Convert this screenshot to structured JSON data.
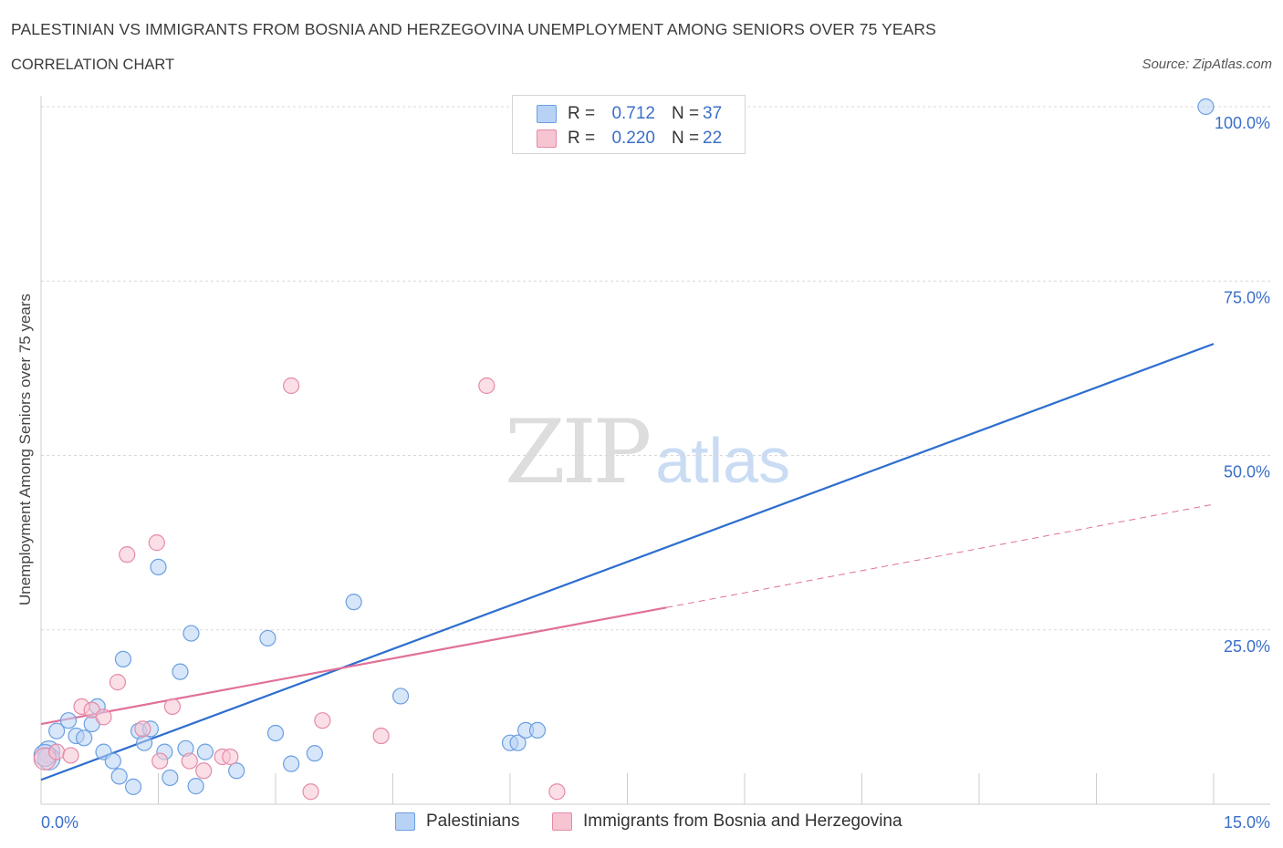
{
  "title": "PALESTINIAN VS IMMIGRANTS FROM BOSNIA AND HERZEGOVINA UNEMPLOYMENT AMONG SENIORS OVER 75 YEARS",
  "subtitle": "CORRELATION CHART",
  "source": "Source: ZipAtlas.com",
  "watermark": {
    "zip": "ZIP",
    "atlas": "atlas"
  },
  "legend": {
    "rows": [
      {
        "r_label": "R =",
        "r_value": "0.712",
        "n_label": "N =",
        "n_value": "37"
      },
      {
        "r_label": "R =",
        "r_value": "0.220",
        "n_label": "N =",
        "n_value": "22"
      }
    ]
  },
  "colors": {
    "blue_fill": "#b8d2f6",
    "blue_stroke": "#6a9fe0",
    "blue_line": "#2d6ecf",
    "pink_fill": "#f7c4d2",
    "pink_stroke": "#e58aa7",
    "pink_line": "#e0709a",
    "grid": "#d8d8d8",
    "tick_text": "#3a6fc9"
  },
  "chart_data": {
    "type": "scatter",
    "title": "PALESTINIAN VS IMMIGRANTS FROM BOSNIA AND HERZEGOVINA UNEMPLOYMENT AMONG SENIORS OVER 75 YEARS",
    "xlabel": "",
    "ylabel": "Unemployment Among Seniors over 75 years",
    "xlim": [
      0,
      15
    ],
    "ylim": [
      0,
      100
    ],
    "x_tick_labels": [
      "0.0%",
      "15.0%"
    ],
    "y_tick_labels": [
      "25.0%",
      "50.0%",
      "75.0%",
      "100.0%"
    ],
    "y_ticks": [
      25,
      50,
      75,
      100
    ],
    "grid": true,
    "legend_position": "top-center",
    "series": [
      {
        "name": "Palestinians",
        "color": "#6a9fe0",
        "points": [
          [
            0.1,
            7.5
          ],
          [
            0.1,
            6.5
          ],
          [
            0.2,
            10.5
          ],
          [
            0.35,
            12.0
          ],
          [
            0.45,
            9.8
          ],
          [
            0.55,
            9.5
          ],
          [
            0.65,
            11.5
          ],
          [
            0.72,
            14.0
          ],
          [
            0.8,
            7.5
          ],
          [
            0.92,
            6.2
          ],
          [
            1.0,
            4.0
          ],
          [
            1.05,
            20.8
          ],
          [
            1.18,
            2.5
          ],
          [
            1.25,
            10.5
          ],
          [
            1.32,
            8.8
          ],
          [
            1.4,
            10.8
          ],
          [
            1.5,
            34.0
          ],
          [
            1.58,
            7.5
          ],
          [
            1.65,
            3.8
          ],
          [
            1.78,
            19.0
          ],
          [
            1.85,
            8.0
          ],
          [
            1.92,
            24.5
          ],
          [
            1.98,
            2.6
          ],
          [
            2.1,
            7.5
          ],
          [
            2.5,
            4.8
          ],
          [
            2.9,
            23.8
          ],
          [
            3.0,
            10.2
          ],
          [
            3.2,
            5.8
          ],
          [
            3.5,
            7.3
          ],
          [
            4.0,
            29.0
          ],
          [
            4.6,
            15.5
          ],
          [
            6.0,
            8.8
          ],
          [
            6.1,
            8.8
          ],
          [
            6.2,
            10.6
          ],
          [
            6.35,
            10.6
          ],
          [
            14.9,
            100.0
          ],
          [
            0.05,
            7.0
          ]
        ]
      },
      {
        "name": "Immigrants from Bosnia and Herzegovina",
        "color": "#e58aa7",
        "points": [
          [
            0.05,
            6.5
          ],
          [
            0.2,
            7.5
          ],
          [
            0.38,
            7.0
          ],
          [
            0.52,
            14.0
          ],
          [
            0.65,
            13.5
          ],
          [
            0.8,
            12.5
          ],
          [
            0.98,
            17.5
          ],
          [
            1.1,
            35.8
          ],
          [
            1.3,
            10.8
          ],
          [
            1.48,
            37.5
          ],
          [
            1.52,
            6.2
          ],
          [
            1.68,
            14.0
          ],
          [
            1.9,
            6.2
          ],
          [
            2.08,
            4.8
          ],
          [
            2.32,
            6.8
          ],
          [
            2.42,
            6.8
          ],
          [
            3.2,
            60.0
          ],
          [
            3.45,
            1.8
          ],
          [
            3.6,
            12.0
          ],
          [
            4.35,
            9.8
          ],
          [
            5.7,
            60.0
          ],
          [
            6.6,
            1.8
          ]
        ]
      }
    ],
    "trendlines": [
      {
        "series": "Palestinians",
        "x0": 0.0,
        "y0": 3.5,
        "x1": 15.0,
        "y1": 66.0,
        "style": "solid"
      },
      {
        "series": "Immigrants from Bosnia and Herzegovina",
        "x0": 0.0,
        "y0": 11.5,
        "x1": 8.0,
        "y1": 28.2,
        "style": "solid"
      },
      {
        "series": "Immigrants from Bosnia and Herzegovina",
        "x0": 8.0,
        "y0": 28.2,
        "x1": 15.0,
        "y1": 43.0,
        "style": "dashed"
      }
    ]
  },
  "bottom_legend": {
    "items": [
      {
        "label": "Palestinians"
      },
      {
        "label": "Immigrants from Bosnia and Herzegovina"
      }
    ]
  }
}
